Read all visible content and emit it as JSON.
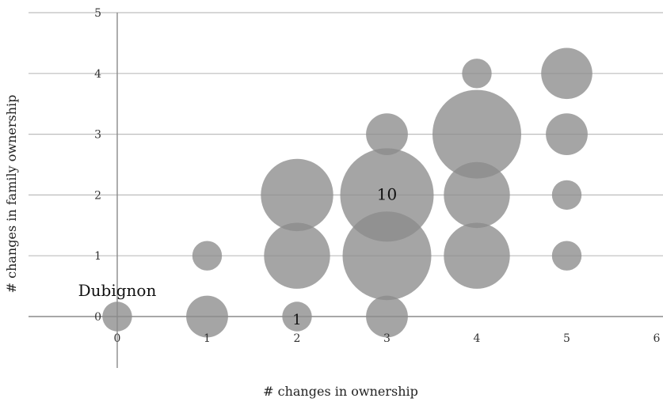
{
  "chart_data": {
    "type": "scatter",
    "subtype": "bubble",
    "title": "",
    "xlabel": "# changes in ownership",
    "ylabel": "# changes in family ownership",
    "xlim": [
      0,
      6
    ],
    "ylim": [
      0,
      5
    ],
    "x_ticks": [
      "0",
      "1",
      "2",
      "3",
      "4",
      "5",
      "6"
    ],
    "y_ticks": [
      "0",
      "1",
      "2",
      "3",
      "4",
      "5"
    ],
    "grid": "horizontal",
    "legend": "none",
    "bubble_color": "#8c8c8c",
    "points": [
      {
        "x": 0,
        "y": 0,
        "size": 1
      },
      {
        "x": 1,
        "y": 0,
        "size": 2
      },
      {
        "x": 1,
        "y": 1,
        "size": 1
      },
      {
        "x": 2,
        "y": 0,
        "size": 1
      },
      {
        "x": 2,
        "y": 1,
        "size": 5
      },
      {
        "x": 2,
        "y": 2,
        "size": 6
      },
      {
        "x": 3,
        "y": 0,
        "size": 2
      },
      {
        "x": 3,
        "y": 1,
        "size": 9
      },
      {
        "x": 3,
        "y": 2,
        "size": 10
      },
      {
        "x": 3,
        "y": 3,
        "size": 2
      },
      {
        "x": 4,
        "y": 1,
        "size": 5
      },
      {
        "x": 4,
        "y": 2,
        "size": 5
      },
      {
        "x": 4,
        "y": 3,
        "size": 9
      },
      {
        "x": 4,
        "y": 4,
        "size": 1
      },
      {
        "x": 5,
        "y": 1,
        "size": 1
      },
      {
        "x": 5,
        "y": 2,
        "size": 1
      },
      {
        "x": 5,
        "y": 3,
        "size": 2
      },
      {
        "x": 5,
        "y": 4,
        "size": 3
      }
    ],
    "annotations": [
      {
        "text": "Dubignon",
        "x": 0,
        "y": 0
      },
      {
        "text": "10",
        "x": 3,
        "y": 2
      },
      {
        "text": "1",
        "x": 2,
        "y": 0
      }
    ]
  }
}
